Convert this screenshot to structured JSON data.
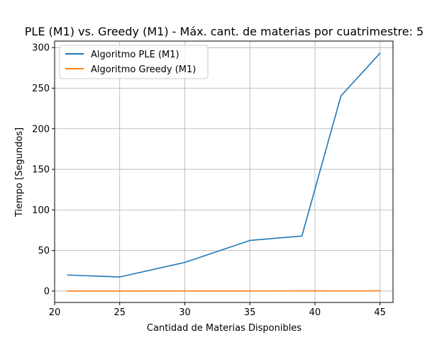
{
  "chart_data": {
    "type": "line",
    "title": "PLE (M1) vs. Greedy (M1) - Máx. cant. de materias por cuatrimestre: 5",
    "xlabel": "Cantidad de Materias Disponibles",
    "ylabel": "Tiempo [Segundos]",
    "xlim": [
      20,
      46
    ],
    "ylim": [
      -14,
      308
    ],
    "xticks": [
      20,
      25,
      30,
      35,
      40,
      45
    ],
    "yticks": [
      0,
      50,
      100,
      150,
      200,
      250,
      300
    ],
    "grid": true,
    "legend_position": "top-left",
    "series": [
      {
        "name": "Algoritmo PLE (M1)",
        "color": "#1f77b4",
        "x": [
          21,
          25,
          30,
          35,
          39,
          42,
          45
        ],
        "y": [
          19.8,
          17.4,
          35.3,
          62.4,
          67.9,
          240.5,
          293.0
        ]
      },
      {
        "name": "Algoritmo Greedy (M1)",
        "color": "#ff7f0e",
        "x": [
          21,
          25,
          30,
          35,
          39,
          42,
          45
        ],
        "y": [
          0.05,
          0.05,
          0.08,
          0.1,
          0.3,
          0.2,
          0.3
        ]
      }
    ]
  }
}
